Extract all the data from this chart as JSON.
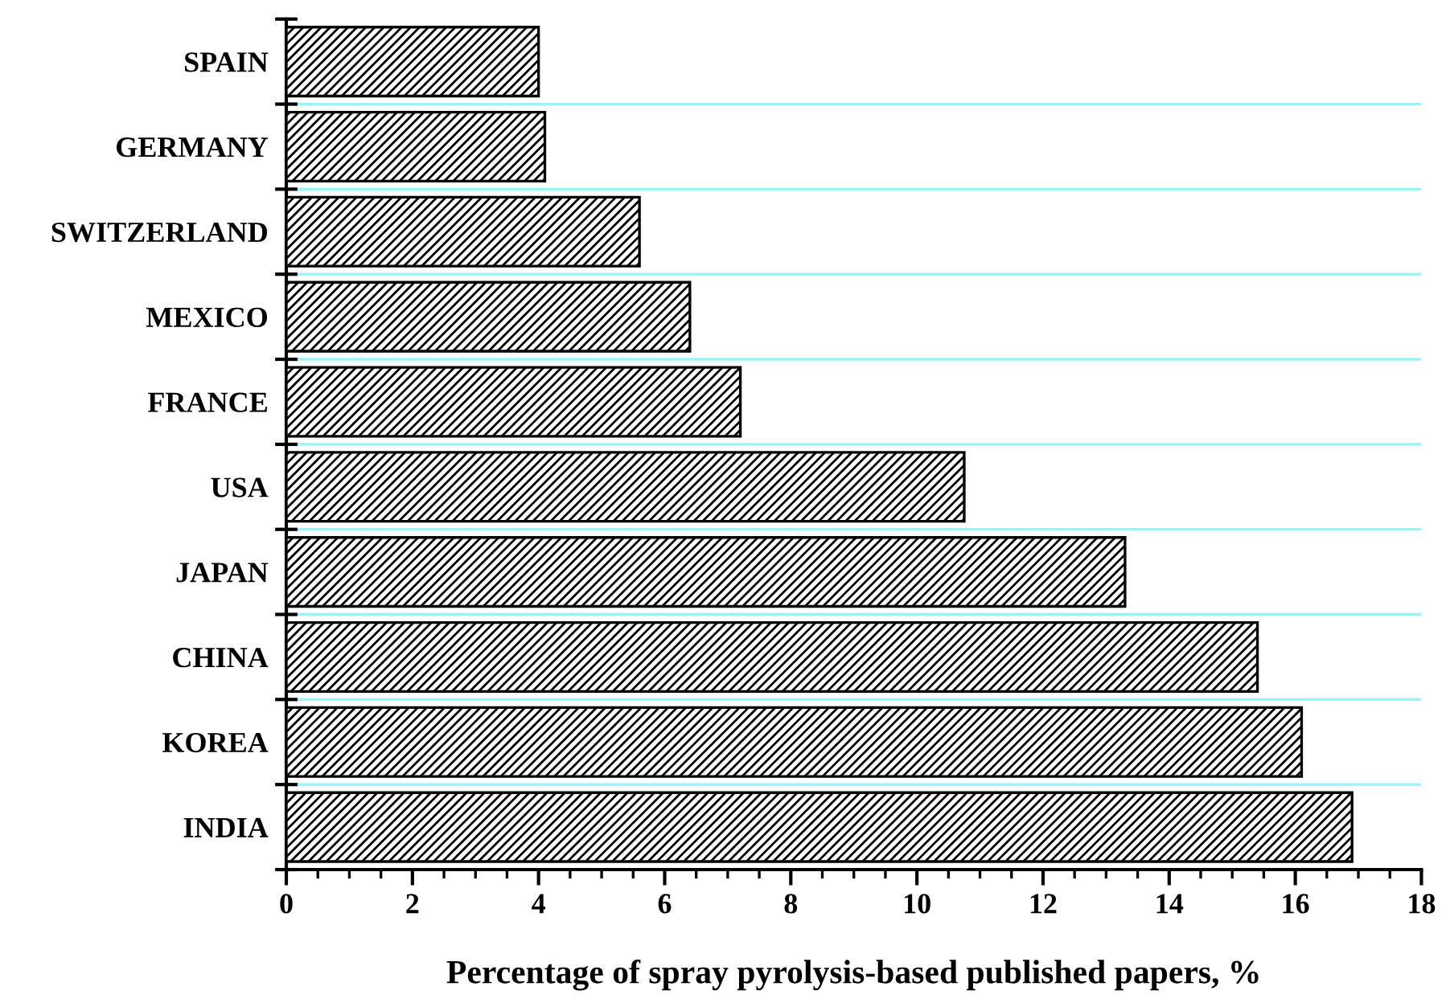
{
  "chart_data": {
    "type": "bar",
    "orientation": "horizontal",
    "categories": [
      "SPAIN",
      "GERMANY",
      "SWITZERLAND",
      "MEXICO",
      "FRANCE",
      "USA",
      "JAPAN",
      "CHINA",
      "KOREA",
      "INDIA"
    ],
    "values": [
      4.0,
      4.1,
      5.6,
      6.4,
      7.2,
      10.75,
      13.3,
      15.4,
      16.1,
      16.9
    ],
    "color": "#000000",
    "xlabel": "Percentage of spray pyrolysis-based published papers, %",
    "xlim": [
      0,
      18
    ],
    "xticks": [
      0,
      2,
      4,
      6,
      8,
      10,
      12,
      14,
      16,
      18
    ],
    "grid": "y"
  }
}
